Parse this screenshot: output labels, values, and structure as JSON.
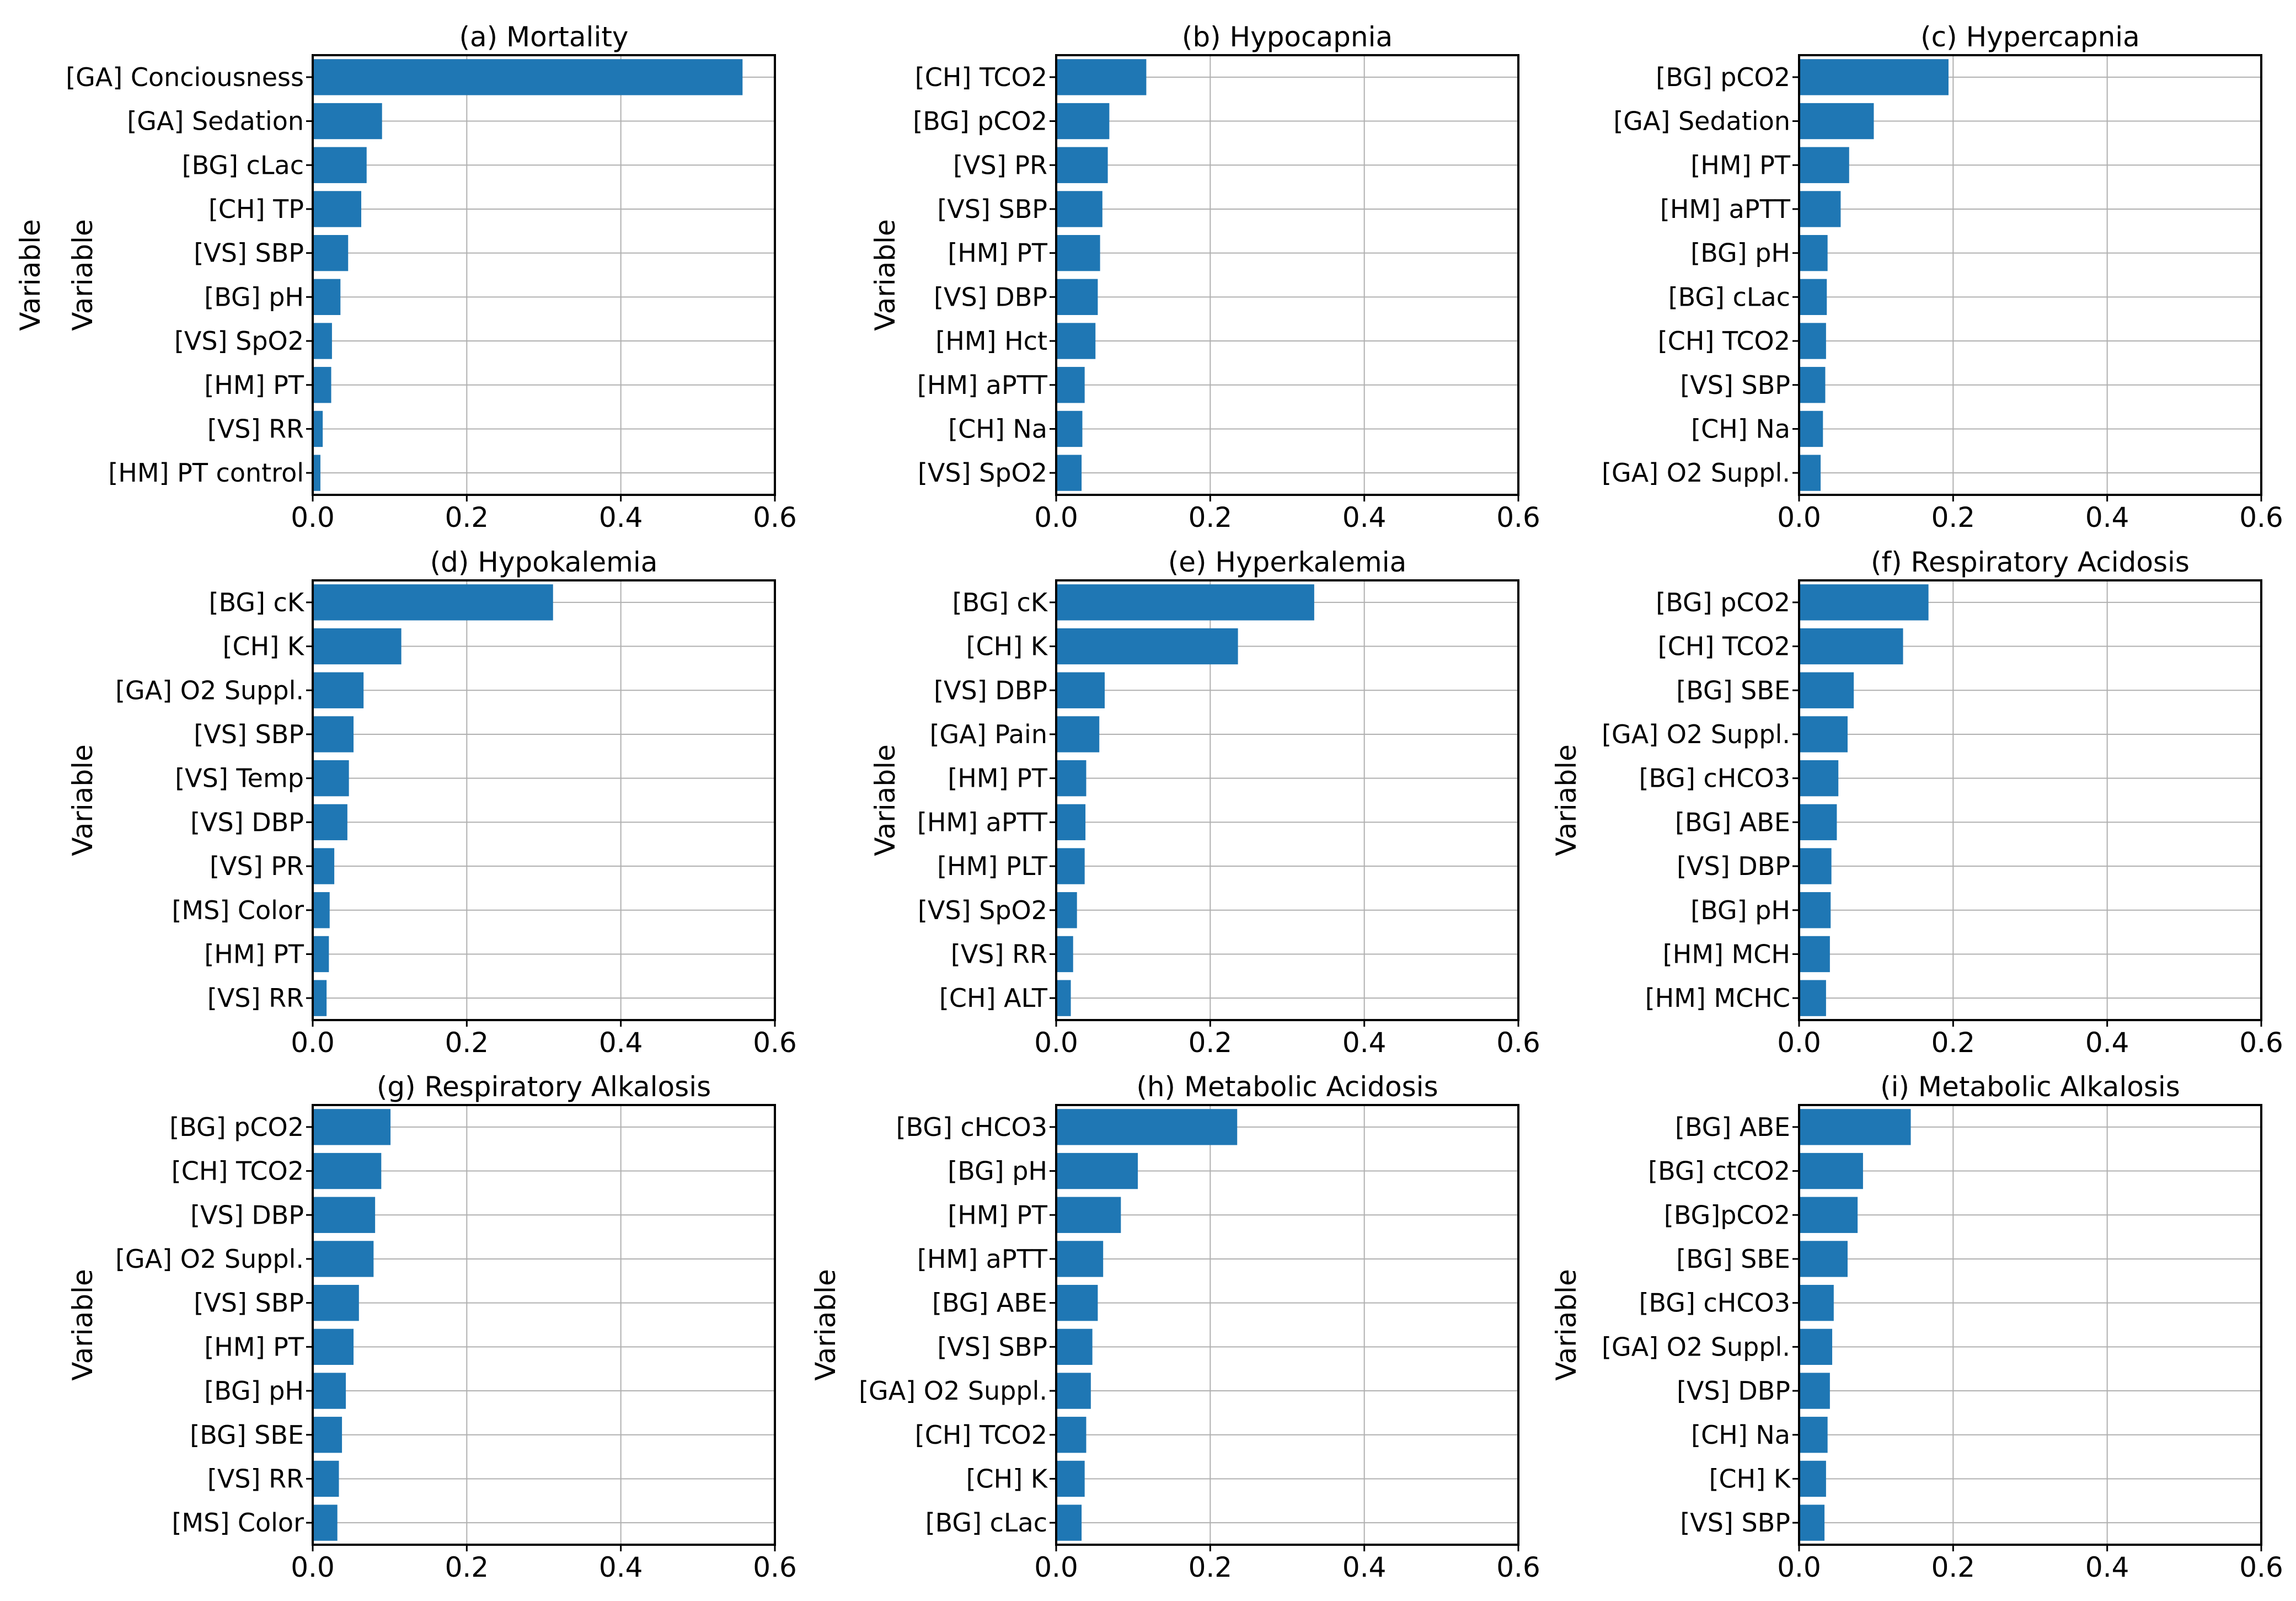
{
  "figure": {
    "bar_color": "#1f77b4",
    "grid_color": "#b0b0b0",
    "axis_color": "#000000"
  },
  "chart_data": [
    {
      "type": "bar",
      "orientation": "horizontal",
      "title": "(a) Mortality",
      "xlabel": "",
      "ylabel": "Variable",
      "xlim": [
        0,
        0.6
      ],
      "xticks": [
        "0.0",
        "0.2",
        "0.4",
        "0.6"
      ],
      "categories": [
        "[GA] Conciousness",
        "[GA] Sedation",
        "[BG] cLac",
        "[CH] TP",
        "[VS] SBP",
        "[BG] pH",
        "[VS] SpO2",
        "[HM] PT",
        "[VS] RR",
        "[HM] PT control"
      ],
      "values": [
        0.558,
        0.09,
        0.07,
        0.063,
        0.046,
        0.036,
        0.025,
        0.024,
        0.013,
        0.01
      ]
    },
    {
      "type": "bar",
      "orientation": "horizontal",
      "title": "(b) Hypocapnia",
      "xlabel": "",
      "ylabel": "Variable",
      "xlim": [
        0,
        0.6
      ],
      "xticks": [
        "0.0",
        "0.2",
        "0.4",
        "0.6"
      ],
      "categories": [
        "[CH] TCO2",
        "[BG] pCO2",
        "[VS] PR",
        "[VS] SBP",
        "[HM] PT",
        "[VS] DBP",
        "[HM] Hct",
        "[HM] aPTT",
        "[CH] Na",
        "[VS] SpO2"
      ],
      "values": [
        0.117,
        0.069,
        0.067,
        0.06,
        0.057,
        0.054,
        0.051,
        0.037,
        0.034,
        0.033
      ]
    },
    {
      "type": "bar",
      "orientation": "horizontal",
      "title": "(c) Hypercapnia",
      "xlabel": "",
      "ylabel": "Variable",
      "xlim": [
        0,
        0.6
      ],
      "xticks": [
        "0.0",
        "0.2",
        "0.4",
        "0.6"
      ],
      "categories": [
        "[BG] pCO2",
        "[GA] Sedation",
        "[HM] PT",
        "[HM] aPTT",
        "[BG] pH",
        "[BG] cLac",
        "[CH] TCO2",
        "[VS] SBP",
        "[CH] Na",
        "[GA] O2 Suppl."
      ],
      "values": [
        0.194,
        0.097,
        0.065,
        0.054,
        0.037,
        0.036,
        0.035,
        0.034,
        0.031,
        0.028
      ]
    },
    {
      "type": "bar",
      "orientation": "horizontal",
      "title": "(d) Hypokalemia",
      "xlabel": "",
      "ylabel": "Variable",
      "xlim": [
        0,
        0.6
      ],
      "xticks": [
        "0.0",
        "0.2",
        "0.4",
        "0.6"
      ],
      "categories": [
        "[BG] cK",
        "[CH] K",
        "[GA] O2 Suppl.",
        "[VS] SBP",
        "[VS] Temp",
        "[VS] DBP",
        "[VS] PR",
        "[MS] Color",
        "[HM] PT",
        "[VS] RR"
      ],
      "values": [
        0.312,
        0.115,
        0.066,
        0.053,
        0.047,
        0.045,
        0.028,
        0.022,
        0.021,
        0.018
      ]
    },
    {
      "type": "bar",
      "orientation": "horizontal",
      "title": "(e) Hyperkalemia",
      "xlabel": "",
      "ylabel": "Variable",
      "xlim": [
        0,
        0.6
      ],
      "xticks": [
        "0.0",
        "0.2",
        "0.4",
        "0.6"
      ],
      "categories": [
        "[BG] cK",
        "[CH] K",
        "[VS] DBP",
        "[GA] Pain",
        "[HM] PT",
        "[HM] aPTT",
        "[HM] PLT",
        "[VS] SpO2",
        "[VS] RR",
        "[CH] ALT"
      ],
      "values": [
        0.335,
        0.236,
        0.063,
        0.056,
        0.039,
        0.038,
        0.037,
        0.027,
        0.022,
        0.019
      ]
    },
    {
      "type": "bar",
      "orientation": "horizontal",
      "title": "(f) Respiratory  Acidosis",
      "xlabel": "",
      "ylabel": "Variable",
      "xlim": [
        0,
        0.6
      ],
      "xticks": [
        "0.0",
        "0.2",
        "0.4",
        "0.6"
      ],
      "categories": [
        "[BG] pCO2",
        "[CH] TCO2",
        "[BG] SBE",
        "[GA] O2 Suppl.",
        "[BG] cHCO3",
        "[BG] ABE",
        "[VS] DBP",
        "[BG] pH",
        "[HM] MCH",
        "[HM] MCHC"
      ],
      "values": [
        0.168,
        0.135,
        0.071,
        0.063,
        0.051,
        0.049,
        0.042,
        0.041,
        0.04,
        0.035
      ]
    },
    {
      "type": "bar",
      "orientation": "horizontal",
      "title": "(g) Respiratory  Alkalosis",
      "xlabel": "",
      "ylabel": "Variable",
      "xlim": [
        0,
        0.6
      ],
      "xticks": [
        "0.0",
        "0.2",
        "0.4",
        "0.6"
      ],
      "categories": [
        "[BG] pCO2",
        "[CH] TCO2",
        "[VS] DBP",
        "[GA] O2 Suppl.",
        "[VS] SBP",
        "[HM] PT",
        "[BG] pH",
        "[BG] SBE",
        "[VS] RR",
        "[MS] Color"
      ],
      "values": [
        0.101,
        0.089,
        0.081,
        0.079,
        0.06,
        0.053,
        0.043,
        0.038,
        0.034,
        0.032
      ]
    },
    {
      "type": "bar",
      "orientation": "horizontal",
      "title": "(h) Metabolic  Acidosis",
      "xlabel": "",
      "ylabel": "Variable",
      "xlim": [
        0,
        0.6
      ],
      "xticks": [
        "0.0",
        "0.2",
        "0.4",
        "0.6"
      ],
      "categories": [
        "[BG] cHCO3",
        "[BG] pH",
        "[HM] PT",
        "[HM] aPTT",
        "[BG] ABE",
        "[VS] SBP",
        "[GA] O2 Suppl.",
        "[CH] TCO2",
        "[CH] K",
        "[BG] cLac"
      ],
      "values": [
        0.235,
        0.106,
        0.084,
        0.061,
        0.054,
        0.047,
        0.045,
        0.039,
        0.037,
        0.033
      ]
    },
    {
      "type": "bar",
      "orientation": "horizontal",
      "title": "(i) Metabolic  Alkalosis",
      "xlabel": "",
      "ylabel": "Variable",
      "xlim": [
        0,
        0.6
      ],
      "xticks": [
        "0.0",
        "0.2",
        "0.4",
        "0.6"
      ],
      "categories": [
        "[BG] ABE",
        "[BG] ctCO2",
        "[BG]pCO2",
        "[BG] SBE",
        "[BG] cHCO3",
        "[GA] O2 Suppl.",
        "[VS] DBP",
        "[CH] Na",
        "[CH] K",
        "[VS] SBP"
      ],
      "values": [
        0.145,
        0.083,
        0.076,
        0.063,
        0.045,
        0.043,
        0.04,
        0.037,
        0.035,
        0.033
      ]
    }
  ]
}
